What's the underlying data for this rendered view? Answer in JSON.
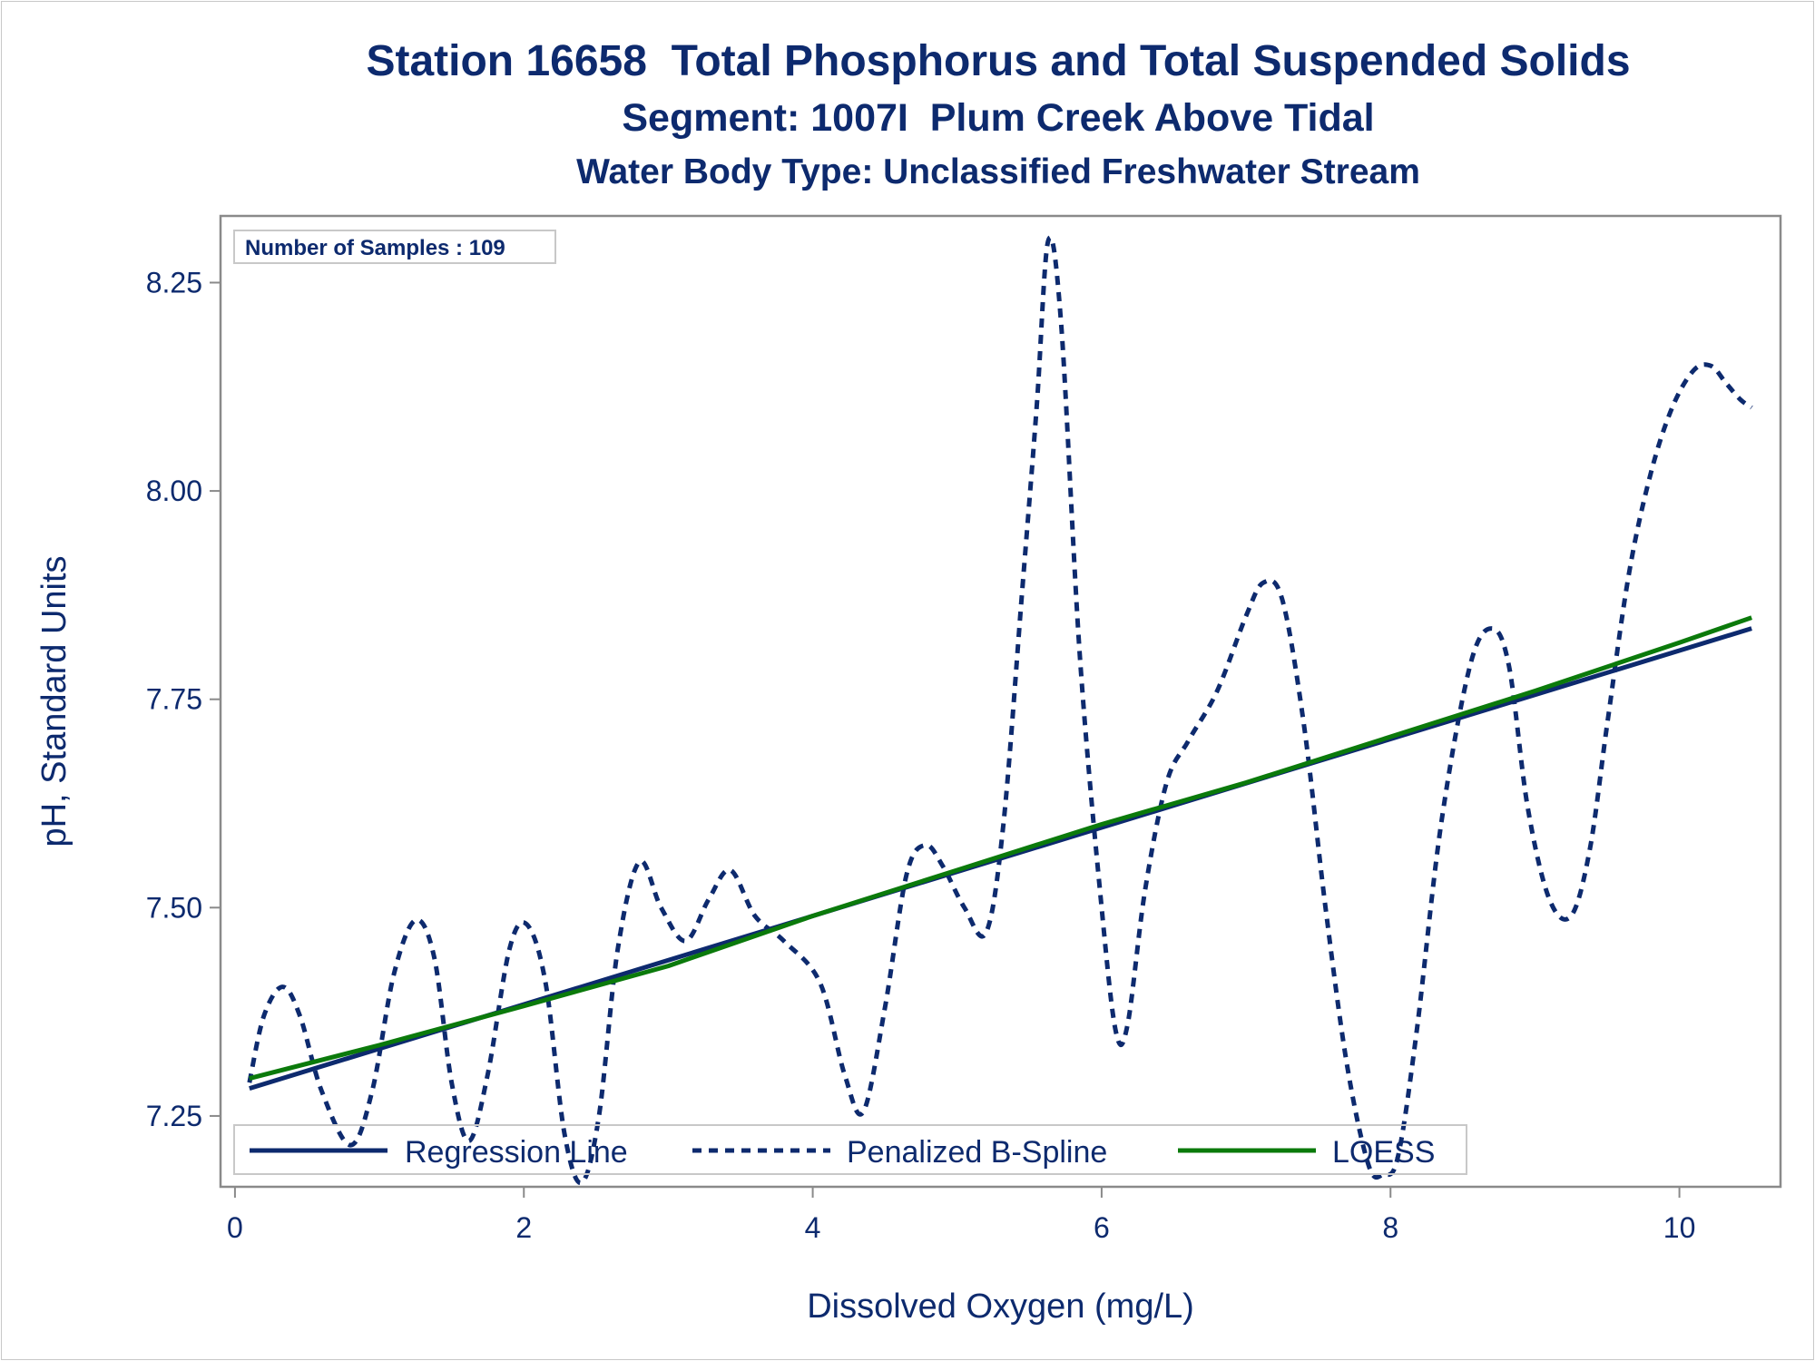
{
  "chart_data": {
    "type": "line",
    "title": "Station 16658  Total Phosphorus and Total Suspended Solids",
    "subtitle": "Segment: 1007I  Plum Creek Above Tidal",
    "subtitle2": "Water Body Type: Unclassified Freshwater Stream",
    "xlabel": "Dissolved Oxygen (mg/L)",
    "ylabel": "pH, Standard Units",
    "xlim": [
      -0.1,
      10.7
    ],
    "ylim": [
      7.165,
      8.33
    ],
    "x_ticks": [
      "0",
      "2",
      "4",
      "6",
      "8",
      "10"
    ],
    "x_tick_values": [
      0,
      2,
      4,
      6,
      8,
      10
    ],
    "y_ticks": [
      "7.25",
      "7.50",
      "7.75",
      "8.00",
      "8.25"
    ],
    "y_tick_values": [
      7.25,
      7.5,
      7.75,
      8.0,
      8.25
    ],
    "annotation": "Number of Samples : 109",
    "legend_position": "bottom-inside",
    "grid": false,
    "series": [
      {
        "name": "Regression Line",
        "color": "#0d2a6e",
        "style": "solid",
        "x": [
          0.1,
          10.5
        ],
        "y": [
          7.283,
          7.835
        ]
      },
      {
        "name": "Penalized B-Spline",
        "color": "#0d2a6e",
        "style": "dashed",
        "x": [
          0.1,
          0.2,
          0.33,
          0.45,
          0.6,
          0.8,
          0.95,
          1.1,
          1.25,
          1.38,
          1.5,
          1.62,
          1.75,
          1.9,
          2.02,
          2.15,
          2.28,
          2.4,
          2.52,
          2.65,
          2.8,
          2.95,
          3.12,
          3.28,
          3.43,
          3.6,
          3.8,
          4.05,
          4.22,
          4.35,
          4.5,
          4.65,
          4.78,
          4.9,
          5.05,
          5.2,
          5.32,
          5.45,
          5.55,
          5.63,
          5.72,
          5.85,
          6.0,
          6.1,
          6.18,
          6.3,
          6.45,
          6.6,
          6.8,
          7.0,
          7.12,
          7.25,
          7.4,
          7.55,
          7.7,
          7.85,
          7.95,
          8.05,
          8.18,
          8.35,
          8.55,
          8.7,
          8.82,
          8.95,
          9.1,
          9.25,
          9.38,
          9.5,
          9.65,
          9.8,
          9.95,
          10.1,
          10.22,
          10.32,
          10.42,
          10.5
        ],
        "y": [
          7.29,
          7.37,
          7.405,
          7.37,
          7.28,
          7.215,
          7.28,
          7.42,
          7.485,
          7.44,
          7.29,
          7.22,
          7.3,
          7.45,
          7.48,
          7.41,
          7.23,
          7.17,
          7.25,
          7.45,
          7.555,
          7.5,
          7.46,
          7.51,
          7.545,
          7.49,
          7.46,
          7.41,
          7.3,
          7.255,
          7.38,
          7.54,
          7.575,
          7.55,
          7.5,
          7.47,
          7.6,
          7.88,
          8.1,
          8.3,
          8.2,
          7.8,
          7.5,
          7.35,
          7.36,
          7.52,
          7.65,
          7.7,
          7.76,
          7.85,
          7.89,
          7.87,
          7.72,
          7.5,
          7.31,
          7.19,
          7.18,
          7.2,
          7.35,
          7.6,
          7.79,
          7.835,
          7.79,
          7.62,
          7.51,
          7.49,
          7.57,
          7.72,
          7.9,
          8.02,
          8.1,
          8.145,
          8.15,
          8.13,
          8.11,
          8.1
        ]
      },
      {
        "name": "LOESS",
        "color": "#0b7a0b",
        "style": "solid",
        "x": [
          0.1,
          1.0,
          2.0,
          3.0,
          4.0,
          5.0,
          6.0,
          7.0,
          8.0,
          9.0,
          10.0,
          10.5
        ],
        "y": [
          7.295,
          7.335,
          7.382,
          7.43,
          7.49,
          7.545,
          7.6,
          7.65,
          7.705,
          7.76,
          7.818,
          7.848
        ]
      }
    ]
  }
}
